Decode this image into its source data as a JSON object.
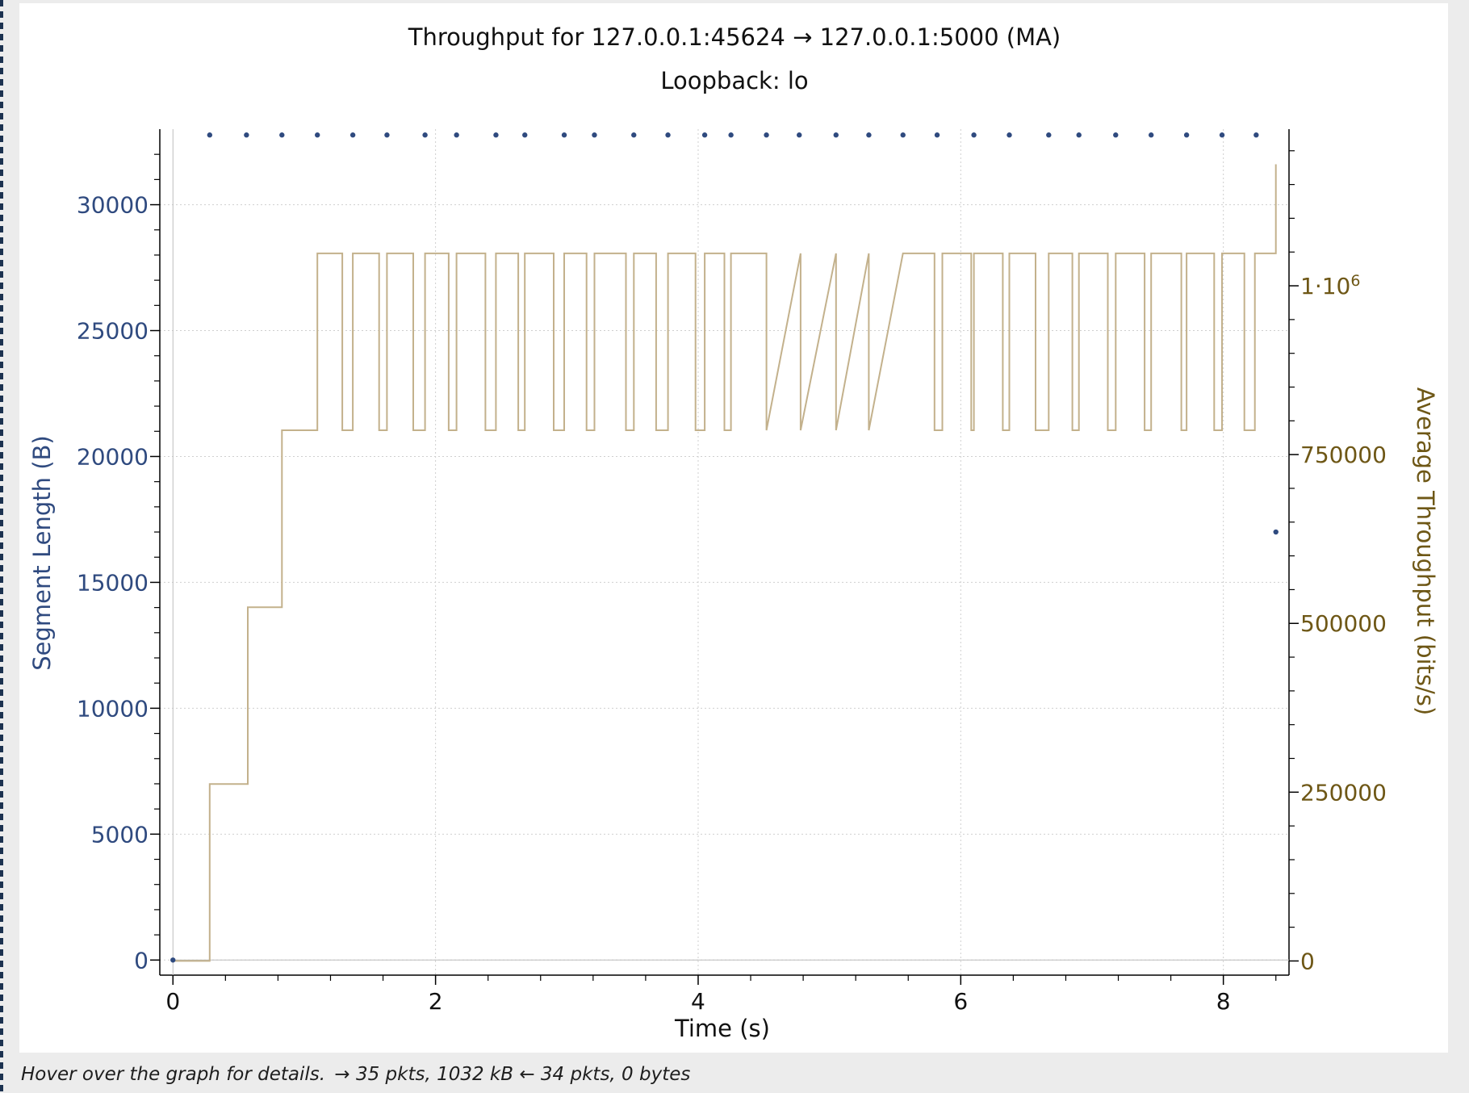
{
  "window": {
    "status_hover": "Hover over the graph for details.",
    "status_counts": "→ 35 pkts, 1032 kB ← 34 pkts, 0 bytes"
  },
  "colors": {
    "segment": "#2f4a7f",
    "throughput": "#c3b18c",
    "throughput_text": "#6e5716",
    "grid": "#cfcfcf",
    "axis": "#000000"
  },
  "chart_data": {
    "type": "scatter",
    "title": "Throughput for 127.0.0.1:45624 → 127.0.0.1:5000 (MA)",
    "subtitle": "Loopback: lo",
    "xlabel": "Time (s)",
    "ylabel": "Segment Length (B)",
    "y2label": "Average Throughput (bits/s)",
    "xlim": [
      -0.1,
      8.5
    ],
    "ylim": [
      -600,
      33000
    ],
    "y2lim": [
      -21000,
      1232000
    ],
    "x_ticks": [
      "0",
      "2",
      "4",
      "6",
      "8"
    ],
    "y_ticks": [
      "0",
      "5000",
      "10000",
      "15000",
      "20000",
      "25000",
      "30000"
    ],
    "y2_ticks": [
      "0",
      "250000",
      "500000",
      "750000",
      "1·10"
    ],
    "y2_tick_sup": "6",
    "grid": true,
    "series": [
      {
        "axis": "left",
        "kind": "points",
        "x": [
          0.0,
          0.28,
          0.56,
          0.83,
          1.1,
          1.37,
          1.63,
          1.92,
          2.16,
          2.46,
          2.68,
          2.98,
          3.21,
          3.51,
          3.77,
          4.05,
          4.25,
          4.52,
          4.77,
          5.05,
          5.3,
          5.56,
          5.82,
          6.1,
          6.37,
          6.67,
          6.9,
          7.18,
          7.45,
          7.72,
          7.99,
          8.25,
          8.4
        ],
        "y": [
          0,
          32768,
          32768,
          32768,
          32768,
          32768,
          32768,
          32768,
          32768,
          32768,
          32768,
          32768,
          32768,
          32768,
          32768,
          32768,
          32768,
          32768,
          32768,
          32768,
          32768,
          32768,
          32768,
          32768,
          32768,
          32768,
          32768,
          32768,
          32768,
          32768,
          32768,
          32768,
          17000
        ]
      },
      {
        "axis": "right",
        "kind": "step",
        "x": [
          0.0,
          0.28,
          0.28,
          0.57,
          0.57,
          0.83,
          0.83,
          1.1,
          1.1,
          1.29,
          1.29,
          1.37,
          1.37,
          1.57,
          1.57,
          1.63,
          1.63,
          1.83,
          1.83,
          1.92,
          1.92,
          2.1,
          2.1,
          2.16,
          2.16,
          2.38,
          2.38,
          2.46,
          2.46,
          2.63,
          2.63,
          2.68,
          2.68,
          2.9,
          2.9,
          2.98,
          2.98,
          3.15,
          3.15,
          3.21,
          3.21,
          3.45,
          3.45,
          3.51,
          3.51,
          3.68,
          3.68,
          3.77,
          3.77,
          3.98,
          3.98,
          4.05,
          4.05,
          4.2,
          4.2,
          4.25,
          4.25,
          4.52,
          4.52,
          4.78,
          4.78,
          5.05,
          5.05,
          5.3,
          5.3,
          5.56,
          5.56,
          5.8,
          5.8,
          5.86,
          5.86,
          6.08,
          6.08,
          6.1,
          6.1,
          6.32,
          6.32,
          6.37,
          6.37,
          6.57,
          6.57,
          6.67,
          6.67,
          6.85,
          6.85,
          6.9,
          6.9,
          7.12,
          7.12,
          7.18,
          7.18,
          7.4,
          7.4,
          7.45,
          7.45,
          7.68,
          7.68,
          7.72,
          7.72,
          7.93,
          7.93,
          7.99,
          7.99,
          8.16,
          8.16,
          8.24,
          8.24,
          8.4,
          8.4
        ],
        "y": [
          0,
          0,
          262000,
          262000,
          524000,
          524000,
          786000,
          786000,
          1048000,
          1048000,
          786000,
          786000,
          1048000,
          1048000,
          786000,
          786000,
          1048000,
          1048000,
          786000,
          786000,
          1048000,
          1048000,
          786000,
          786000,
          1048000,
          1048000,
          786000,
          786000,
          1048000,
          1048000,
          786000,
          786000,
          1048000,
          1048000,
          786000,
          786000,
          1048000,
          1048000,
          786000,
          786000,
          1048000,
          1048000,
          786000,
          786000,
          1048000,
          1048000,
          786000,
          786000,
          1048000,
          1048000,
          786000,
          786000,
          1048000,
          1048000,
          786000,
          786000,
          1048000,
          1048000,
          786000,
          1048000,
          786000,
          1048000,
          786000,
          1048000,
          786000,
          1048000,
          1048000,
          1048000,
          786000,
          786000,
          1048000,
          1048000,
          786000,
          786000,
          1048000,
          1048000,
          786000,
          786000,
          1048000,
          1048000,
          786000,
          786000,
          1048000,
          1048000,
          786000,
          786000,
          1048000,
          1048000,
          786000,
          786000,
          1048000,
          1048000,
          786000,
          786000,
          1048000,
          1048000,
          786000,
          786000,
          1048000,
          1048000,
          786000,
          786000,
          1048000,
          1048000,
          786000,
          786000,
          1048000,
          1048000,
          1180000
        ]
      }
    ]
  }
}
